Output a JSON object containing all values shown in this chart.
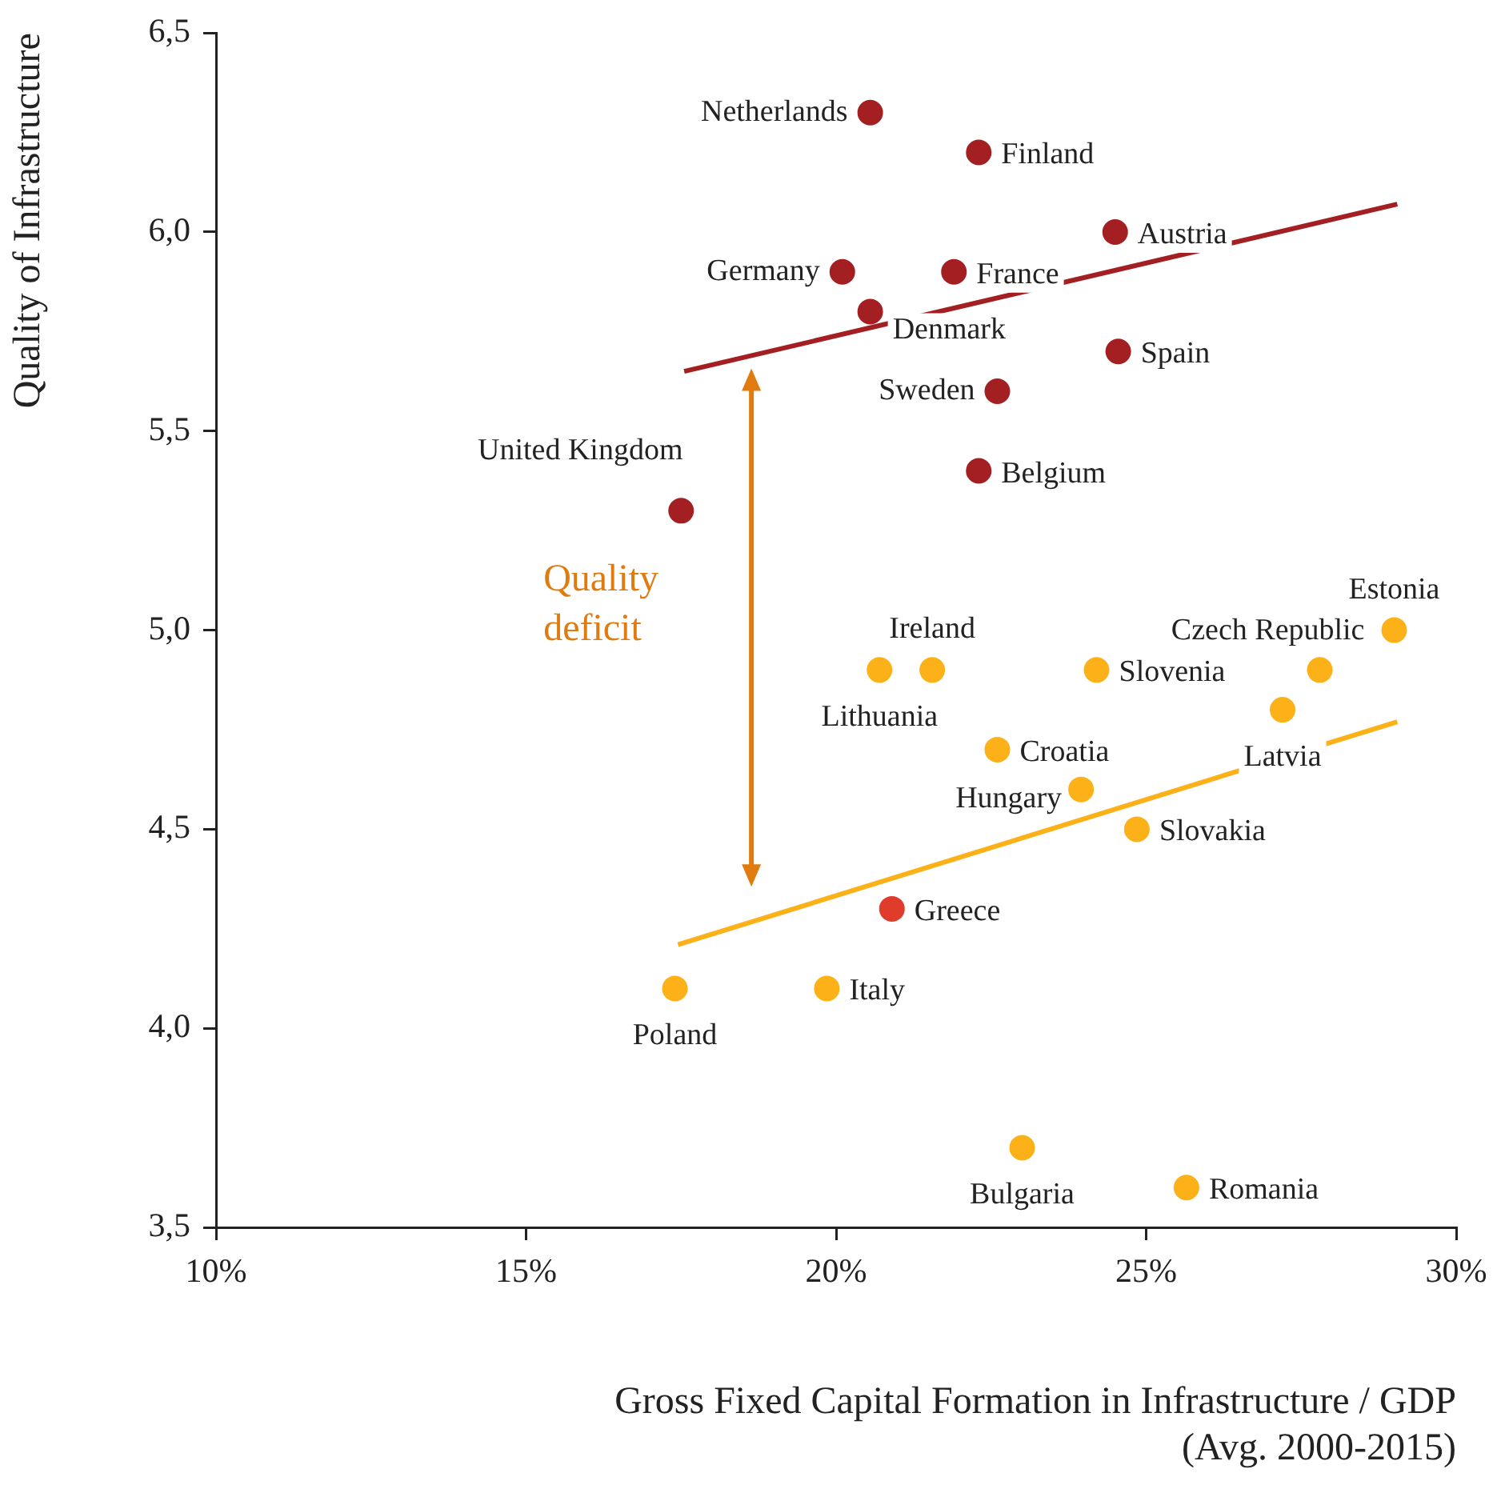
{
  "chart_data": {
    "type": "scatter",
    "xlabel": "Gross Fixed Capital Formation in Infrastructure / GDP\n(Avg. 2000-2015)",
    "ylabel": "Quality of Infrastructure",
    "xlim": [
      10,
      30
    ],
    "xticks": [
      {
        "value": 10,
        "label": "10%"
      },
      {
        "value": 15,
        "label": "15%"
      },
      {
        "value": 20,
        "label": "20%"
      },
      {
        "value": 25,
        "label": "25%"
      },
      {
        "value": 30,
        "label": "30%"
      }
    ],
    "ylim": [
      3.5,
      6.5
    ],
    "yticks": [
      {
        "value": 3.5,
        "label": "3,5"
      },
      {
        "value": 4,
        "label": "4,0"
      },
      {
        "value": 4.5,
        "label": "4,5"
      },
      {
        "value": 5,
        "label": "5,0"
      },
      {
        "value": 5.5,
        "label": "5,5"
      },
      {
        "value": 6,
        "label": "6,0"
      },
      {
        "value": 6.5,
        "label": "6,5"
      }
    ],
    "grid": false,
    "marker": "circle",
    "annotations": [
      "Quality deficit"
    ],
    "series": [
      {
        "name": "Netherlands",
        "color": "#a31f22",
        "x": [
          20.55
        ],
        "values": [
          6.3
        ]
      },
      {
        "name": "Finland",
        "color": "#a31f22",
        "x": [
          22.3
        ],
        "values": [
          6.2
        ]
      },
      {
        "name": "Austria",
        "color": "#a31f22",
        "x": [
          24.5
        ],
        "values": [
          6.0
        ]
      },
      {
        "name": "Germany",
        "color": "#a31f22",
        "x": [
          20.1
        ],
        "values": [
          5.9
        ]
      },
      {
        "name": "France",
        "color": "#a31f22",
        "x": [
          21.9
        ],
        "values": [
          5.9
        ]
      },
      {
        "name": "Denmark",
        "color": "#a31f22",
        "x": [
          20.55
        ],
        "values": [
          5.8
        ]
      },
      {
        "name": "Spain",
        "color": "#a31f22",
        "x": [
          24.55
        ],
        "values": [
          5.7
        ]
      },
      {
        "name": "Sweden",
        "color": "#a31f22",
        "x": [
          22.6
        ],
        "values": [
          5.6
        ]
      },
      {
        "name": "Belgium",
        "color": "#a31f22",
        "x": [
          22.3
        ],
        "values": [
          5.4
        ]
      },
      {
        "name": "United Kingdom",
        "color": "#a31f22",
        "x": [
          17.5
        ],
        "values": [
          5.3
        ]
      },
      {
        "name": "Estonia",
        "color": "#fbb117",
        "x": [
          29.0
        ],
        "values": [
          5.0
        ]
      },
      {
        "name": "Ireland",
        "color": "#fbb117",
        "x": [
          21.55
        ],
        "values": [
          4.9
        ]
      },
      {
        "name": "Lithuania",
        "color": "#fbb117",
        "x": [
          20.7
        ],
        "values": [
          4.9
        ]
      },
      {
        "name": "Slovenia",
        "color": "#fbb117",
        "x": [
          24.2
        ],
        "values": [
          4.9
        ]
      },
      {
        "name": "Czech Republic",
        "color": "#fbb117",
        "x": [
          27.8
        ],
        "values": [
          4.9
        ]
      },
      {
        "name": "Latvia",
        "color": "#fbb117",
        "x": [
          27.2
        ],
        "values": [
          4.8
        ]
      },
      {
        "name": "Croatia",
        "color": "#fbb117",
        "x": [
          22.6
        ],
        "values": [
          4.7
        ]
      },
      {
        "name": "Hungary",
        "color": "#fbb117",
        "x": [
          23.95
        ],
        "values": [
          4.6
        ]
      },
      {
        "name": "Slovakia",
        "color": "#fbb117",
        "x": [
          24.85
        ],
        "values": [
          4.5
        ]
      },
      {
        "name": "Greece",
        "color": "#e03c2c",
        "x": [
          20.9
        ],
        "values": [
          4.3
        ]
      },
      {
        "name": "Poland",
        "color": "#fbb117",
        "x": [
          17.4
        ],
        "values": [
          4.1
        ]
      },
      {
        "name": "Italy",
        "color": "#fbb117",
        "x": [
          19.85
        ],
        "values": [
          4.1
        ]
      },
      {
        "name": "Bulgaria",
        "color": "#fbb117",
        "x": [
          23.0
        ],
        "values": [
          3.7
        ]
      },
      {
        "name": "Romania",
        "color": "#fbb117",
        "x": [
          25.65
        ],
        "values": [
          3.6
        ]
      },
      {
        "type": "line",
        "marker": "none",
        "color": "#a31f22",
        "x": [
          17.55,
          29.05
        ],
        "values": [
          5.65,
          6.07
        ]
      },
      {
        "type": "line",
        "marker": "none",
        "color": "#fbb117",
        "x": [
          17.45,
          29.05
        ],
        "values": [
          4.21,
          4.77
        ]
      }
    ]
  }
}
